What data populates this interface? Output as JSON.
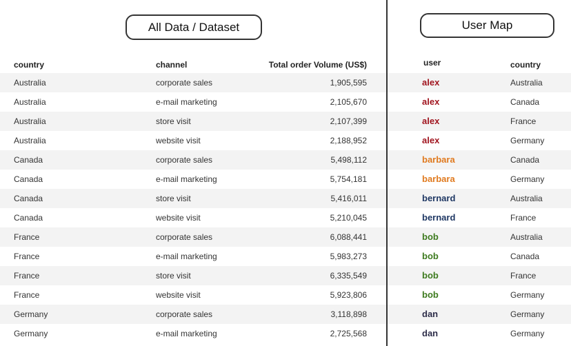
{
  "left_panel": {
    "title": "All Data / Dataset",
    "headers": {
      "country": "country",
      "channel": "channel",
      "volume": "Total order Volume (US$)"
    },
    "rows": [
      {
        "country": "Australia",
        "channel": "corporate sales",
        "volume": "1,905,595"
      },
      {
        "country": "Australia",
        "channel": "e-mail marketing",
        "volume": "2,105,670"
      },
      {
        "country": "Australia",
        "channel": "store visit",
        "volume": "2,107,399"
      },
      {
        "country": "Australia",
        "channel": "website visit",
        "volume": "2,188,952"
      },
      {
        "country": "Canada",
        "channel": "corporate sales",
        "volume": "5,498,112"
      },
      {
        "country": "Canada",
        "channel": "e-mail marketing",
        "volume": "5,754,181"
      },
      {
        "country": "Canada",
        "channel": "store visit",
        "volume": "5,416,011"
      },
      {
        "country": "Canada",
        "channel": "website visit",
        "volume": "5,210,045"
      },
      {
        "country": "France",
        "channel": "corporate sales",
        "volume": "6,088,441"
      },
      {
        "country": "France",
        "channel": "e-mail marketing",
        "volume": "5,983,273"
      },
      {
        "country": "France",
        "channel": "store visit",
        "volume": "6,335,549"
      },
      {
        "country": "France",
        "channel": "website visit",
        "volume": "5,923,806"
      },
      {
        "country": "Germany",
        "channel": "corporate sales",
        "volume": "3,118,898"
      },
      {
        "country": "Germany",
        "channel": "e-mail marketing",
        "volume": "2,725,568"
      }
    ]
  },
  "right_panel": {
    "title": "User Map",
    "headers": {
      "user": "user",
      "country": "country"
    },
    "user_colors": {
      "alex": "#a0141e",
      "barbara": "#e07a1f",
      "bernard": "#1f3864",
      "bob": "#3d7a1e",
      "dan": "#2e2e4a"
    },
    "rows": [
      {
        "user": "alex",
        "country": "Australia"
      },
      {
        "user": "alex",
        "country": "Canada"
      },
      {
        "user": "alex",
        "country": "France"
      },
      {
        "user": "alex",
        "country": "Germany"
      },
      {
        "user": "barbara",
        "country": "Canada"
      },
      {
        "user": "barbara",
        "country": "Germany"
      },
      {
        "user": "bernard",
        "country": "Australia"
      },
      {
        "user": "bernard",
        "country": "France"
      },
      {
        "user": "bob",
        "country": "Australia"
      },
      {
        "user": "bob",
        "country": "Canada"
      },
      {
        "user": "bob",
        "country": "France"
      },
      {
        "user": "bob",
        "country": "Germany"
      },
      {
        "user": "dan",
        "country": "Germany"
      },
      {
        "user": "dan",
        "country": "Germany"
      }
    ]
  }
}
